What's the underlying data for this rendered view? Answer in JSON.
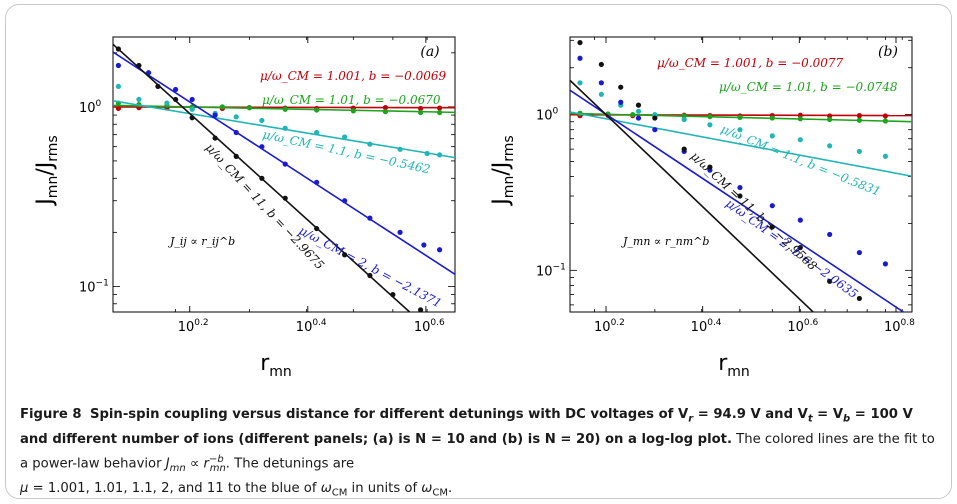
{
  "chart_data": [
    {
      "type": "scatter",
      "panel_label": "(a)",
      "xlabel": "r",
      "xlabel_sub": "mn",
      "ylabel": "J",
      "ylabel_sub": "mn",
      "ylabel_sep": "/J",
      "ylabel_sub2": "rms",
      "x_scale": "log",
      "y_scale": "log",
      "x_ticks": [
        {
          "value": 1.585,
          "base": "10",
          "exp": "0.2"
        },
        {
          "value": 2.512,
          "base": "10",
          "exp": "0.4"
        },
        {
          "value": 3.981,
          "base": "10",
          "exp": "0.6"
        }
      ],
      "y_ticks": [
        {
          "value": 0.1,
          "base": "10",
          "exp": "−1"
        },
        {
          "value": 1,
          "base": "10",
          "exp": "0"
        }
      ],
      "xlim": [
        1.175,
        4.46
      ],
      "ylim": [
        0.072,
        2.45
      ],
      "law": "J_ij ∝ r_ij^b",
      "series": [
        {
          "color": "#c0000a",
          "b": -0.0069,
          "fit": {
            "amp": 1.0,
            "b": -0.0069
          },
          "x": [
            1.2,
            1.3,
            1.45,
            1.6,
            1.8,
            2.0,
            2.3,
            2.6,
            3.0,
            3.4,
            3.9,
            4.2
          ],
          "y": [
            0.98,
            0.99,
            0.985,
            0.99,
            0.98,
            0.99,
            0.985,
            0.98,
            0.985,
            0.99,
            0.98,
            0.985
          ],
          "label": "μ/ω_CM = 1.001, b = −0.0069"
        },
        {
          "color": "#1ea31e",
          "b": -0.067,
          "fit": {
            "amp": 1.03,
            "b": -0.067
          },
          "x": [
            1.2,
            1.3,
            1.45,
            1.6,
            1.8,
            2.0,
            2.3,
            2.6,
            3.0,
            3.4,
            3.9,
            4.2
          ],
          "y": [
            1.05,
            1.03,
            1.02,
            1.0,
            1.0,
            0.99,
            0.97,
            0.96,
            0.95,
            0.94,
            0.93,
            0.93
          ],
          "label": "μ/ω_CM = 1.01, b = −0.0670"
        },
        {
          "color": "#22b5b5",
          "b": -0.5462,
          "fit": {
            "amp": 1.18,
            "b": -0.5462
          },
          "x": [
            1.2,
            1.3,
            1.45,
            1.6,
            1.75,
            1.9,
            2.1,
            2.3,
            2.6,
            2.9,
            3.2,
            3.6,
            4.0,
            4.2
          ],
          "y": [
            1.3,
            1.1,
            1.05,
            0.97,
            0.92,
            0.88,
            0.84,
            0.76,
            0.72,
            0.68,
            0.62,
            0.58,
            0.55,
            0.54
          ],
          "label": "μ/ω_CM = 1.1, b = −0.5462"
        },
        {
          "color": "#1a1ad0",
          "b": -2.1371,
          "fit": {
            "amp": 2.85,
            "b": -2.1371
          },
          "x": [
            1.2,
            1.35,
            1.5,
            1.6,
            1.75,
            1.9,
            2.1,
            2.3,
            2.6,
            2.9,
            3.2,
            3.6,
            3.95,
            4.2
          ],
          "y": [
            1.7,
            1.55,
            1.25,
            1.1,
            0.9,
            0.72,
            0.6,
            0.48,
            0.38,
            0.3,
            0.24,
            0.2,
            0.17,
            0.16
          ],
          "label": "μ/ω_CM = 2, b = −2.1371"
        },
        {
          "color": "#111111",
          "b": -2.9675,
          "fit": {
            "amp": 3.6,
            "b": -2.9675
          },
          "x": [
            1.2,
            1.3,
            1.4,
            1.5,
            1.6,
            1.75,
            1.9,
            2.1,
            2.3,
            2.6,
            2.9,
            3.2,
            3.5,
            3.9,
            4.2
          ],
          "y": [
            2.1,
            1.7,
            1.3,
            1.1,
            0.87,
            0.67,
            0.53,
            0.4,
            0.31,
            0.21,
            0.15,
            0.115,
            0.09,
            0.074,
            0.067
          ],
          "label": "μ/ω_CM = 11, b = −2.9675"
        }
      ]
    },
    {
      "type": "scatter",
      "panel_label": "(b)",
      "xlabel": "r",
      "xlabel_sub": "mn",
      "ylabel": "J",
      "ylabel_sub": "mn",
      "ylabel_sep": "/J",
      "ylabel_sub2": "rms",
      "x_scale": "log",
      "y_scale": "log",
      "x_ticks": [
        {
          "value": 1.585,
          "base": "10",
          "exp": "0.2"
        },
        {
          "value": 2.512,
          "base": "10",
          "exp": "0.4"
        },
        {
          "value": 3.981,
          "base": "10",
          "exp": "0.6"
        },
        {
          "value": 6.31,
          "base": "10",
          "exp": "0.8"
        }
      ],
      "y_ticks": [
        {
          "value": 0.1,
          "base": "10",
          "exp": "−1"
        },
        {
          "value": 1,
          "base": "10",
          "exp": "0"
        }
      ],
      "xlim": [
        1.335,
        6.81
      ],
      "ylim": [
        0.054,
        3.15
      ],
      "law": "J_mn ∝ r_nm^b",
      "series": [
        {
          "color": "#c0000a",
          "b": -0.0077,
          "fit": {
            "amp": 1.0,
            "b": -0.0077
          },
          "x": [
            1.4,
            1.6,
            1.8,
            2.0,
            2.3,
            2.6,
            3.0,
            3.5,
            4.0,
            4.6,
            5.3,
            6.0
          ],
          "y": [
            0.985,
            0.99,
            0.985,
            0.98,
            0.99,
            0.985,
            0.98,
            0.985,
            0.99,
            0.98,
            0.985,
            0.98
          ],
          "label": "μ/ω_CM = 1.001, b = −0.0077"
        },
        {
          "color": "#1ea31e",
          "b": -0.0748,
          "fit": {
            "amp": 1.04,
            "b": -0.0748
          },
          "x": [
            1.4,
            1.6,
            1.8,
            2.0,
            2.3,
            2.6,
            3.0,
            3.5,
            4.0,
            4.6,
            5.3,
            6.0
          ],
          "y": [
            1.02,
            1.01,
            1.0,
            0.99,
            0.98,
            0.97,
            0.96,
            0.95,
            0.94,
            0.93,
            0.92,
            0.91
          ],
          "label": "μ/ω_CM = 1.01, b = −0.0748"
        },
        {
          "color": "#22b5b5",
          "b": -0.5831,
          "fit": {
            "amp": 1.23,
            "b": -0.5831
          },
          "x": [
            1.4,
            1.55,
            1.7,
            1.85,
            2.0,
            2.3,
            2.6,
            3.0,
            3.5,
            4.0,
            4.6,
            5.3,
            6.0
          ],
          "y": [
            1.6,
            1.35,
            1.15,
            1.05,
            1.0,
            0.93,
            0.86,
            0.8,
            0.73,
            0.69,
            0.63,
            0.58,
            0.54
          ],
          "label": "μ/ω_CM = 1.1, b = −0.5831"
        },
        {
          "color": "#1a1ad0",
          "b": -2.0635,
          "fit": {
            "amp": 2.6,
            "b": -2.0635
          },
          "x": [
            1.4,
            1.55,
            1.7,
            1.85,
            2.0,
            2.3,
            2.6,
            3.0,
            3.5,
            4.0,
            4.6,
            5.3,
            6.0
          ],
          "y": [
            2.3,
            1.6,
            1.2,
            0.95,
            0.8,
            0.58,
            0.44,
            0.34,
            0.26,
            0.21,
            0.17,
            0.13,
            0.11
          ],
          "label": "μ/ω_CM = 2, b = −2.0635"
        },
        {
          "color": "#111111",
          "b": -2.9568,
          "fit": {
            "amp": 3.9,
            "b": -2.9568
          },
          "x": [
            1.4,
            1.55,
            1.7,
            1.85,
            2.0,
            2.3,
            2.6,
            3.0,
            3.5,
            4.0,
            4.6,
            5.3,
            6.0
          ],
          "y": [
            2.9,
            2.1,
            1.5,
            1.15,
            0.95,
            0.6,
            0.46,
            0.3,
            0.19,
            0.14,
            0.085,
            0.066,
            0.05
          ],
          "label": "μ/ω_CM = 11, b = −2.9568"
        }
      ]
    }
  ],
  "caption": {
    "figure_label": "Figure 8",
    "bold_text": "Spin-spin coupling versus distance for different detunings with DC voltages of V",
    "bold_text_2": " = 94.9 V and V",
    "bold_text_3": " = V",
    "bold_text_4": " = 100 V and different number of ions (different panels; (a) is N = 10 and (b) is N = 20) on a log-log plot.",
    "sub_r": "r",
    "sub_t": "t",
    "sub_b": "b",
    "body_1": " The colored lines are the fit to a power-law behavior ",
    "law_J": "J",
    "law_sub": "mn",
    "law_prop": " ∝ ",
    "law_r": "r",
    "law_sup": "−b",
    "law_rsub": "mn",
    "body_2": ". The detunings are",
    "line3_mu": "μ",
    "line3_text": " = 1.001, 1.01, 1.1, 2, and 11 to the blue of ",
    "line3_omega": "ω",
    "line3_sub": "CM",
    "line3_text2": " in units of ",
    "line3_omega2": "ω",
    "line3_sub2": "CM",
    "line3_end": "."
  }
}
